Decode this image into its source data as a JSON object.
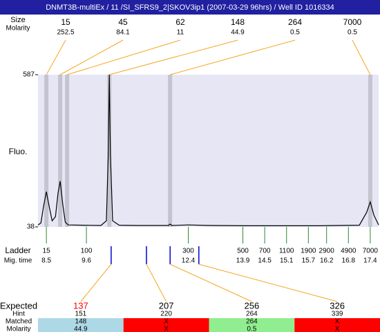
{
  "chart_data": {
    "type": "line",
    "title": "DNMT3B-multiEx / 11 /SI_SFRS9_2|SKOV3ip1 (2007-03-29 96hrs) / Well ID 1016334",
    "peak_label": "Size",
    "molarity_label": "Molarity",
    "ylabel": "Fluo.",
    "ylim": [
      38,
      587
    ],
    "yticks": [
      38,
      587
    ],
    "xlim": [
      8.27,
      17.63
    ],
    "color": "#000000",
    "x": [
      8.27,
      8.35,
      8.42,
      8.5,
      8.58,
      8.66,
      8.75,
      8.82,
      8.88,
      8.95,
      9.02,
      9.1,
      9.5,
      10.0,
      10.15,
      10.2,
      10.23,
      10.26,
      10.32,
      10.5,
      11.0,
      11.85,
      11.9,
      11.95,
      12.4,
      13,
      14,
      15,
      16,
      17.1,
      17.3,
      17.4,
      17.5,
      17.63
    ],
    "values": [
      45,
      52,
      110,
      165,
      110,
      60,
      75,
      160,
      203,
      120,
      55,
      45,
      44,
      43,
      60,
      300,
      587,
      300,
      60,
      44,
      43,
      43,
      48,
      43,
      45,
      43,
      42,
      42,
      42,
      44,
      90,
      128,
      80,
      45
    ],
    "peaks": [
      {
        "size": 15,
        "molarity": 252.5,
        "time": 8.5
      },
      {
        "size": 45,
        "molarity": 84.1,
        "time": 8.88
      },
      {
        "size": 62,
        "molarity": 11,
        "time": 9.07
      },
      {
        "size": 148,
        "molarity": 44.9,
        "time": 10.23
      },
      {
        "size": 264,
        "molarity": 0.5,
        "time": 11.9
      },
      {
        "size": 7000,
        "molarity": 0.5,
        "time": 17.4
      }
    ],
    "ladder_label": "Ladder",
    "mig_label": "Mig. time",
    "ladder": [
      {
        "size": 15,
        "time": 8.5
      },
      {
        "size": 100,
        "time": 9.6
      },
      {
        "size": 300,
        "time": 12.4
      },
      {
        "size": 500,
        "time": 13.9
      },
      {
        "size": 700,
        "time": 14.5
      },
      {
        "size": 1100,
        "time": 15.1
      },
      {
        "size": 1900,
        "time": 15.7
      },
      {
        "size": 2900,
        "time": 16.2
      },
      {
        "size": 4900,
        "time": 16.8
      },
      {
        "size": 7000,
        "time": 17.4
      }
    ],
    "row_labels": [
      "Expected",
      "Hint",
      "Matched",
      "Molarity"
    ],
    "expected": [
      {
        "size": 137,
        "hint": 151,
        "matched": 148,
        "molarity": 44.9,
        "time": 10.28,
        "color": "#add8e6",
        "label_color": "#ff0000"
      },
      {
        "size": 207,
        "hint": 220,
        "matched": "X",
        "molarity": "X",
        "time": 11.25,
        "color": "#ff0000",
        "label_color": "#000000"
      },
      {
        "size": 256,
        "hint": 264,
        "matched": 264,
        "molarity": 0.5,
        "time": 11.9,
        "color": "#90ee90",
        "label_color": "#000000"
      },
      {
        "size": 326,
        "hint": 339,
        "matched": "X",
        "molarity": "X",
        "time": 12.69,
        "color": "#ff0000",
        "label_color": "#000000"
      }
    ]
  }
}
